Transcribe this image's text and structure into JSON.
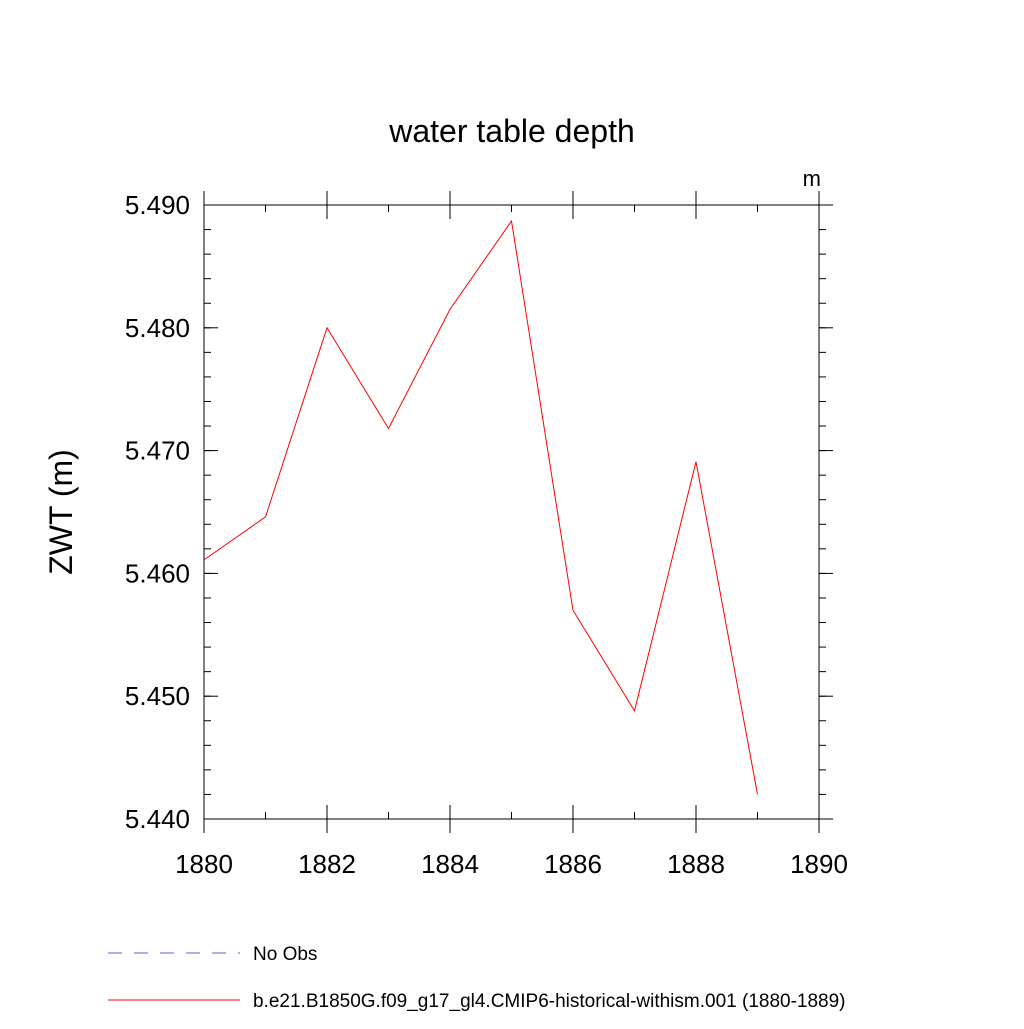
{
  "chart_data": {
    "type": "line",
    "title": "water table depth",
    "units_label": "m",
    "ylabel": "ZWT  (m)",
    "xlabel": "",
    "xlim": [
      1880,
      1890
    ],
    "ylim": [
      5.44,
      5.49
    ],
    "x_ticks": [
      1880,
      1882,
      1884,
      1886,
      1888,
      1890
    ],
    "x_tick_labels": [
      "1880",
      "1882",
      "1884",
      "1886",
      "1888",
      "1890"
    ],
    "x_minor_step": 1,
    "y_ticks": [
      5.44,
      5.45,
      5.46,
      5.47,
      5.48,
      5.49
    ],
    "y_tick_labels": [
      "5.440",
      "5.450",
      "5.460",
      "5.470",
      "5.480",
      "5.490"
    ],
    "y_minor_step": 0.002,
    "grid": false,
    "legend_position": "bottom-left",
    "series": [
      {
        "name": "b.e21.B1850G.f09_g17_gl4.CMIP6-historical-withism.001 (1880-1889)",
        "color": "#ff0000",
        "dash": "solid",
        "x": [
          1880,
          1881,
          1882,
          1883,
          1884,
          1885,
          1886,
          1887,
          1888,
          1889
        ],
        "y": [
          5.4611,
          5.4646,
          5.48,
          5.4718,
          5.4815,
          5.4887,
          5.457,
          5.4488,
          5.4691,
          5.442
        ]
      }
    ],
    "legend": [
      {
        "label": "No Obs",
        "color": "#6a5acd",
        "dash": "dashed"
      },
      {
        "label": "b.e21.B1850G.f09_g17_gl4.CMIP6-historical-withism.001 (1880-1889)",
        "color": "#ff0000",
        "dash": "solid"
      }
    ]
  }
}
